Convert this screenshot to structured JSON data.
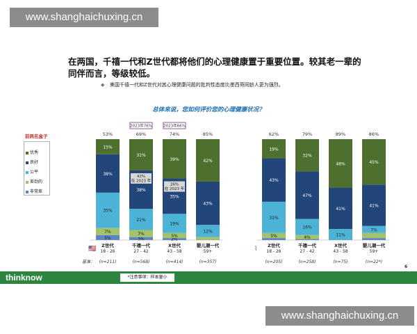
{
  "watermark": "www.shanghaichuxing.cn",
  "title": "在两国，千禧一代和Z世代都将他们的心理健康置于重要位置。较其老一辈的同伴而言，等级较低。",
  "note": "美国千禧一代和Z世代对其心理健康问题的批判性态度比墨西哥同龄人更为强烈。",
  "question": "总体来说，您如何评价您的心理健康状况？",
  "legend": {
    "title": "前两名盒子",
    "items": [
      {
        "label": "优秀",
        "color": "#4e6f2e"
      },
      {
        "label": "良好",
        "color": "#22467a"
      },
      {
        "label": "公平",
        "color": "#4db3d6"
      },
      {
        "label": "差劲的",
        "color": "#a2c26b"
      },
      {
        "label": "非常差",
        "color": "#5b86c2"
      }
    ]
  },
  "footer": {
    "logo": "thinknow",
    "note": "*注意事项：样本量小",
    "page": "6"
  },
  "chart_data": {
    "type": "bar",
    "stacked": true,
    "ylim": [
      0,
      100
    ],
    "series_names": [
      "优秀",
      "良好",
      "公平",
      "差劲的",
      "非常差"
    ],
    "groups": [
      {
        "country": "US",
        "base_label": "基准：",
        "bars": [
          {
            "name": "Z世代",
            "age": "18 - 26",
            "n": "(n=211)",
            "top2": "53%",
            "values": [
              15,
              38,
              35,
              7,
              5
            ],
            "labels": [
              "15%",
              "38%",
              "35%",
              "7%",
              "5%"
            ]
          },
          {
            "name": "千禧一代",
            "age": "27 - 42",
            "n": "(n=568)",
            "top2": "69%",
            "badge": "2023年76%",
            "values": [
              31,
              38,
              21,
              7,
              3
            ],
            "labels": [
              "31%",
              "38%",
              "21%",
              "7%",
              "3%"
            ],
            "compare": "42%\n在 2023 年"
          },
          {
            "name": "X世代",
            "age": "43 - 58",
            "n": "(n=414)",
            "top2": "74%",
            "badge": "2023年66%",
            "values": [
              39,
              35,
              19,
              5,
              2
            ],
            "labels": [
              "39%",
              "35%",
              "19%",
              "5%",
              "2%"
            ],
            "compare": "26%\n在 2023 年"
          },
          {
            "name": "婴儿潮一代",
            "age": "59+",
            "n": "(n=357)",
            "top2": "85%",
            "values": [
              42,
              43,
              12,
              3,
              0
            ],
            "labels": [
              "42%",
              "43%",
              "12%",
              "",
              ""
            ]
          }
        ]
      },
      {
        "country": "MX",
        "bars": [
          {
            "name": "Z世代",
            "age": "18 - 26",
            "n": "(n=205)",
            "top2": "62%",
            "values": [
              19,
              43,
              31,
              5,
              2
            ],
            "labels": [
              "19%",
              "43%",
              "31%",
              "5%",
              ""
            ]
          },
          {
            "name": "千禧一代",
            "age": "27 - 42",
            "n": "(n=258)",
            "top2": "79%",
            "values": [
              32,
              47,
              16,
              4,
              1
            ],
            "labels": [
              "32%",
              "47%",
              "16%",
              "4%",
              ""
            ]
          },
          {
            "name": "X世代",
            "age": "43 - 58",
            "n": "(n=75)",
            "top2": "89%",
            "values": [
              48,
              41,
              11,
              0,
              0
            ],
            "labels": [
              "48%",
              "41%",
              "11%",
              "",
              ""
            ]
          },
          {
            "name": "婴儿潮一代",
            "age": "59+",
            "n": "(n=22*)",
            "top2": "86%",
            "values": [
              45,
              41,
              7,
              5,
              2
            ],
            "labels": [
              "45%",
              "41%",
              "7%",
              "",
              ""
            ]
          }
        ]
      }
    ]
  }
}
